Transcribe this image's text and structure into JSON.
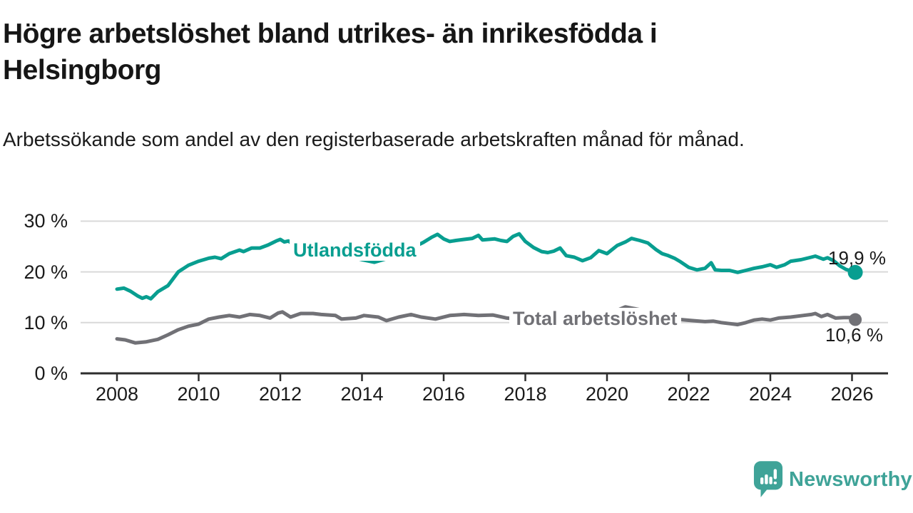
{
  "header": {
    "title": "Högre arbetslöshet bland utrikes- än inrikesfödda i Helsingborg",
    "subtitle": "Arbetssökande som andel av den registerbaserade arbetskraften månad för månad."
  },
  "footer": {
    "brand": "Newsworthy"
  },
  "colors": {
    "accent_teal": "#089e90",
    "neutral_gray": "#717176",
    "grid": "#d9d9d9",
    "axis": "#2d2d2d",
    "text": "#1b1b1b",
    "logo_teal": "#3fa398"
  },
  "chart_data": {
    "type": "line",
    "title": "Högre arbetslöshet bland utrikes- än inrikesfödda i Helsingborg",
    "xlabel": "",
    "ylabel": "Arbetssökande som andel av den registerbaserade arbetskraften",
    "grid": "horizontal",
    "xlim": [
      2007.1,
      2026.9
    ],
    "ylim": [
      0,
      31
    ],
    "x_ticks": [
      2008,
      2010,
      2012,
      2014,
      2016,
      2018,
      2020,
      2022,
      2024,
      2026
    ],
    "x_tick_labels": [
      "2008",
      "2010",
      "2012",
      "2014",
      "2016",
      "2018",
      "2020",
      "2022",
      "2024",
      "2026"
    ],
    "y_ticks": [
      0,
      10,
      20,
      30
    ],
    "y_tick_labels": [
      "0 %",
      "10 %",
      "20 %",
      "30 %"
    ],
    "series": [
      {
        "name": "Utlandsfödda",
        "color": "#089e90",
        "end_label": "19,9 %",
        "end_value": 19.9,
        "points": [
          [
            2008.0,
            16.6
          ],
          [
            2008.17,
            16.8
          ],
          [
            2008.33,
            16.2
          ],
          [
            2008.5,
            15.3
          ],
          [
            2008.62,
            14.8
          ],
          [
            2008.72,
            15.1
          ],
          [
            2008.83,
            14.7
          ],
          [
            2009.0,
            16.1
          ],
          [
            2009.25,
            17.3
          ],
          [
            2009.5,
            20.0
          ],
          [
            2009.75,
            21.3
          ],
          [
            2010.0,
            22.1
          ],
          [
            2010.25,
            22.7
          ],
          [
            2010.4,
            22.9
          ],
          [
            2010.55,
            22.6
          ],
          [
            2010.75,
            23.6
          ],
          [
            2011.0,
            24.3
          ],
          [
            2011.1,
            24.0
          ],
          [
            2011.3,
            24.7
          ],
          [
            2011.5,
            24.7
          ],
          [
            2011.7,
            25.3
          ],
          [
            2011.9,
            26.1
          ],
          [
            2012.0,
            26.4
          ],
          [
            2012.1,
            25.9
          ],
          [
            2012.2,
            26.1
          ],
          [
            2012.35,
            25.2
          ],
          [
            2012.6,
            25.0
          ],
          [
            2012.9,
            24.6
          ],
          [
            2013.2,
            24.2
          ],
          [
            2013.5,
            23.4
          ],
          [
            2013.8,
            22.8
          ],
          [
            2014.0,
            22.4
          ],
          [
            2014.3,
            21.9
          ],
          [
            2014.6,
            22.6
          ],
          [
            2014.9,
            23.6
          ],
          [
            2015.2,
            24.6
          ],
          [
            2015.5,
            25.8
          ],
          [
            2015.7,
            26.8
          ],
          [
            2015.85,
            27.4
          ],
          [
            2016.0,
            26.5
          ],
          [
            2016.15,
            26.0
          ],
          [
            2016.3,
            26.2
          ],
          [
            2016.5,
            26.4
          ],
          [
            2016.7,
            26.6
          ],
          [
            2016.85,
            27.2
          ],
          [
            2016.95,
            26.3
          ],
          [
            2017.1,
            26.4
          ],
          [
            2017.25,
            26.5
          ],
          [
            2017.4,
            26.2
          ],
          [
            2017.55,
            26.0
          ],
          [
            2017.7,
            27.0
          ],
          [
            2017.85,
            27.5
          ],
          [
            2018.0,
            26.0
          ],
          [
            2018.2,
            24.8
          ],
          [
            2018.4,
            24.0
          ],
          [
            2018.55,
            23.8
          ],
          [
            2018.7,
            24.1
          ],
          [
            2018.85,
            24.7
          ],
          [
            2019.0,
            23.2
          ],
          [
            2019.2,
            22.9
          ],
          [
            2019.4,
            22.2
          ],
          [
            2019.6,
            22.8
          ],
          [
            2019.8,
            24.2
          ],
          [
            2020.0,
            23.6
          ],
          [
            2020.25,
            25.2
          ],
          [
            2020.45,
            25.9
          ],
          [
            2020.6,
            26.6
          ],
          [
            2020.8,
            26.2
          ],
          [
            2021.0,
            25.7
          ],
          [
            2021.2,
            24.4
          ],
          [
            2021.35,
            23.6
          ],
          [
            2021.5,
            23.2
          ],
          [
            2021.65,
            22.7
          ],
          [
            2021.8,
            22.0
          ],
          [
            2022.0,
            20.9
          ],
          [
            2022.2,
            20.4
          ],
          [
            2022.4,
            20.7
          ],
          [
            2022.55,
            21.8
          ],
          [
            2022.65,
            20.4
          ],
          [
            2022.8,
            20.3
          ],
          [
            2023.0,
            20.3
          ],
          [
            2023.2,
            19.9
          ],
          [
            2023.4,
            20.3
          ],
          [
            2023.6,
            20.7
          ],
          [
            2023.8,
            21.0
          ],
          [
            2024.0,
            21.4
          ],
          [
            2024.15,
            20.9
          ],
          [
            2024.35,
            21.4
          ],
          [
            2024.5,
            22.1
          ],
          [
            2024.75,
            22.4
          ],
          [
            2025.0,
            22.9
          ],
          [
            2025.1,
            23.1
          ],
          [
            2025.3,
            22.5
          ],
          [
            2025.4,
            22.8
          ],
          [
            2025.55,
            22.2
          ],
          [
            2025.7,
            21.2
          ],
          [
            2025.85,
            20.5
          ],
          [
            2026.0,
            20.1
          ],
          [
            2026.08,
            19.9
          ]
        ]
      },
      {
        "name": "Total arbetslöshet",
        "color": "#717176",
        "end_label": "10,6 %",
        "end_value": 10.6,
        "points": [
          [
            2008.0,
            6.8
          ],
          [
            2008.2,
            6.6
          ],
          [
            2008.45,
            6.0
          ],
          [
            2008.7,
            6.2
          ],
          [
            2009.0,
            6.7
          ],
          [
            2009.25,
            7.6
          ],
          [
            2009.5,
            8.6
          ],
          [
            2009.75,
            9.3
          ],
          [
            2010.0,
            9.7
          ],
          [
            2010.25,
            10.7
          ],
          [
            2010.5,
            11.1
          ],
          [
            2010.75,
            11.4
          ],
          [
            2011.0,
            11.1
          ],
          [
            2011.25,
            11.6
          ],
          [
            2011.5,
            11.4
          ],
          [
            2011.75,
            10.9
          ],
          [
            2011.95,
            11.9
          ],
          [
            2012.05,
            12.1
          ],
          [
            2012.25,
            11.1
          ],
          [
            2012.5,
            11.8
          ],
          [
            2012.8,
            11.8
          ],
          [
            2013.0,
            11.6
          ],
          [
            2013.35,
            11.4
          ],
          [
            2013.5,
            10.7
          ],
          [
            2013.85,
            10.9
          ],
          [
            2014.05,
            11.4
          ],
          [
            2014.4,
            11.1
          ],
          [
            2014.6,
            10.4
          ],
          [
            2014.9,
            11.1
          ],
          [
            2015.2,
            11.6
          ],
          [
            2015.45,
            11.1
          ],
          [
            2015.8,
            10.7
          ],
          [
            2016.15,
            11.4
          ],
          [
            2016.5,
            11.6
          ],
          [
            2016.85,
            11.4
          ],
          [
            2017.2,
            11.5
          ],
          [
            2017.55,
            10.9
          ],
          [
            2017.8,
            10.7
          ],
          [
            2018.1,
            10.6
          ],
          [
            2018.5,
            10.4
          ],
          [
            2019.0,
            10.5
          ],
          [
            2019.5,
            10.9
          ],
          [
            2020.0,
            11.6
          ],
          [
            2020.45,
            13.1
          ],
          [
            2020.9,
            12.4
          ],
          [
            2021.3,
            11.3
          ],
          [
            2021.8,
            10.6
          ],
          [
            2022.1,
            10.4
          ],
          [
            2022.4,
            10.2
          ],
          [
            2022.6,
            10.3
          ],
          [
            2022.8,
            10.0
          ],
          [
            2023.0,
            9.8
          ],
          [
            2023.2,
            9.6
          ],
          [
            2023.4,
            10.0
          ],
          [
            2023.6,
            10.5
          ],
          [
            2023.8,
            10.7
          ],
          [
            2024.0,
            10.5
          ],
          [
            2024.2,
            10.9
          ],
          [
            2024.5,
            11.1
          ],
          [
            2024.8,
            11.4
          ],
          [
            2025.0,
            11.6
          ],
          [
            2025.1,
            11.8
          ],
          [
            2025.25,
            11.2
          ],
          [
            2025.4,
            11.6
          ],
          [
            2025.6,
            10.9
          ],
          [
            2025.8,
            11.0
          ],
          [
            2026.0,
            11.0
          ],
          [
            2026.08,
            10.6
          ]
        ]
      }
    ]
  }
}
